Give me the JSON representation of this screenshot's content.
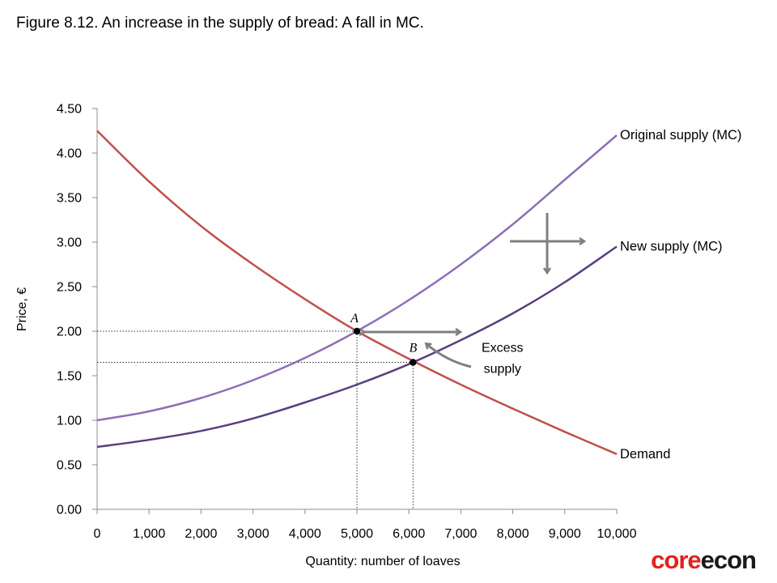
{
  "figure_title": "Figure 8.12. An increase in the supply of bread: A fall in MC.",
  "logo": {
    "part1": "core",
    "part2": "econ"
  },
  "colors": {
    "original_supply": "#8d6fb6",
    "new_supply": "#5a3f7e",
    "demand": "#c0504d",
    "arrow": "#7f7f7f",
    "axis": "#8c8c8c"
  },
  "chart_data": {
    "type": "line",
    "xlabel": "Quantity: number of loaves",
    "ylabel": "Price, €",
    "xlim": [
      0,
      10000
    ],
    "ylim": [
      0,
      4.5
    ],
    "x_ticks": [
      0,
      1000,
      2000,
      3000,
      4000,
      5000,
      6000,
      7000,
      8000,
      9000,
      10000
    ],
    "x_tick_labels": [
      "0",
      "1,000",
      "2,000",
      "3,000",
      "4,000",
      "5,000",
      "6,000",
      "7,000",
      "8,000",
      "9,000",
      "10,000"
    ],
    "y_ticks": [
      0,
      0.5,
      1,
      1.5,
      2,
      2.5,
      3,
      3.5,
      4,
      4.5
    ],
    "y_tick_labels": [
      "0.00",
      "0.50",
      "1.00",
      "1.50",
      "2.00",
      "2.50",
      "3.00",
      "3.50",
      "4.00",
      "4.50"
    ],
    "grid": false,
    "series": [
      {
        "name": "Original supply (MC)",
        "x": [
          0,
          1000,
          2000,
          3000,
          4000,
          5000,
          6000,
          7000,
          8000,
          9000,
          10000
        ],
        "values": [
          1.0,
          1.1,
          1.25,
          1.45,
          1.7,
          2.0,
          2.35,
          2.75,
          3.2,
          3.7,
          4.2
        ]
      },
      {
        "name": "New supply (MC)",
        "x": [
          0,
          1000,
          2000,
          3000,
          4000,
          5000,
          6000,
          7000,
          8000,
          9000,
          10000
        ],
        "values": [
          0.7,
          0.78,
          0.88,
          1.02,
          1.2,
          1.4,
          1.63,
          1.9,
          2.2,
          2.55,
          2.95
        ]
      },
      {
        "name": "Demand",
        "x": [
          0,
          1000,
          2000,
          3000,
          4000,
          5000,
          6000,
          7000,
          8000,
          9000,
          10000
        ],
        "values": [
          4.25,
          3.68,
          3.18,
          2.75,
          2.36,
          2.0,
          1.69,
          1.4,
          1.13,
          0.87,
          0.62
        ]
      }
    ],
    "points": [
      {
        "label": "A",
        "x": 5000,
        "y": 2.0
      },
      {
        "label": "B",
        "x": 6080,
        "y": 1.65
      }
    ],
    "annotations": [
      {
        "text": "Excess",
        "x": 7800,
        "y": 1.77
      },
      {
        "text": "supply",
        "x": 7800,
        "y": 1.53
      }
    ]
  }
}
